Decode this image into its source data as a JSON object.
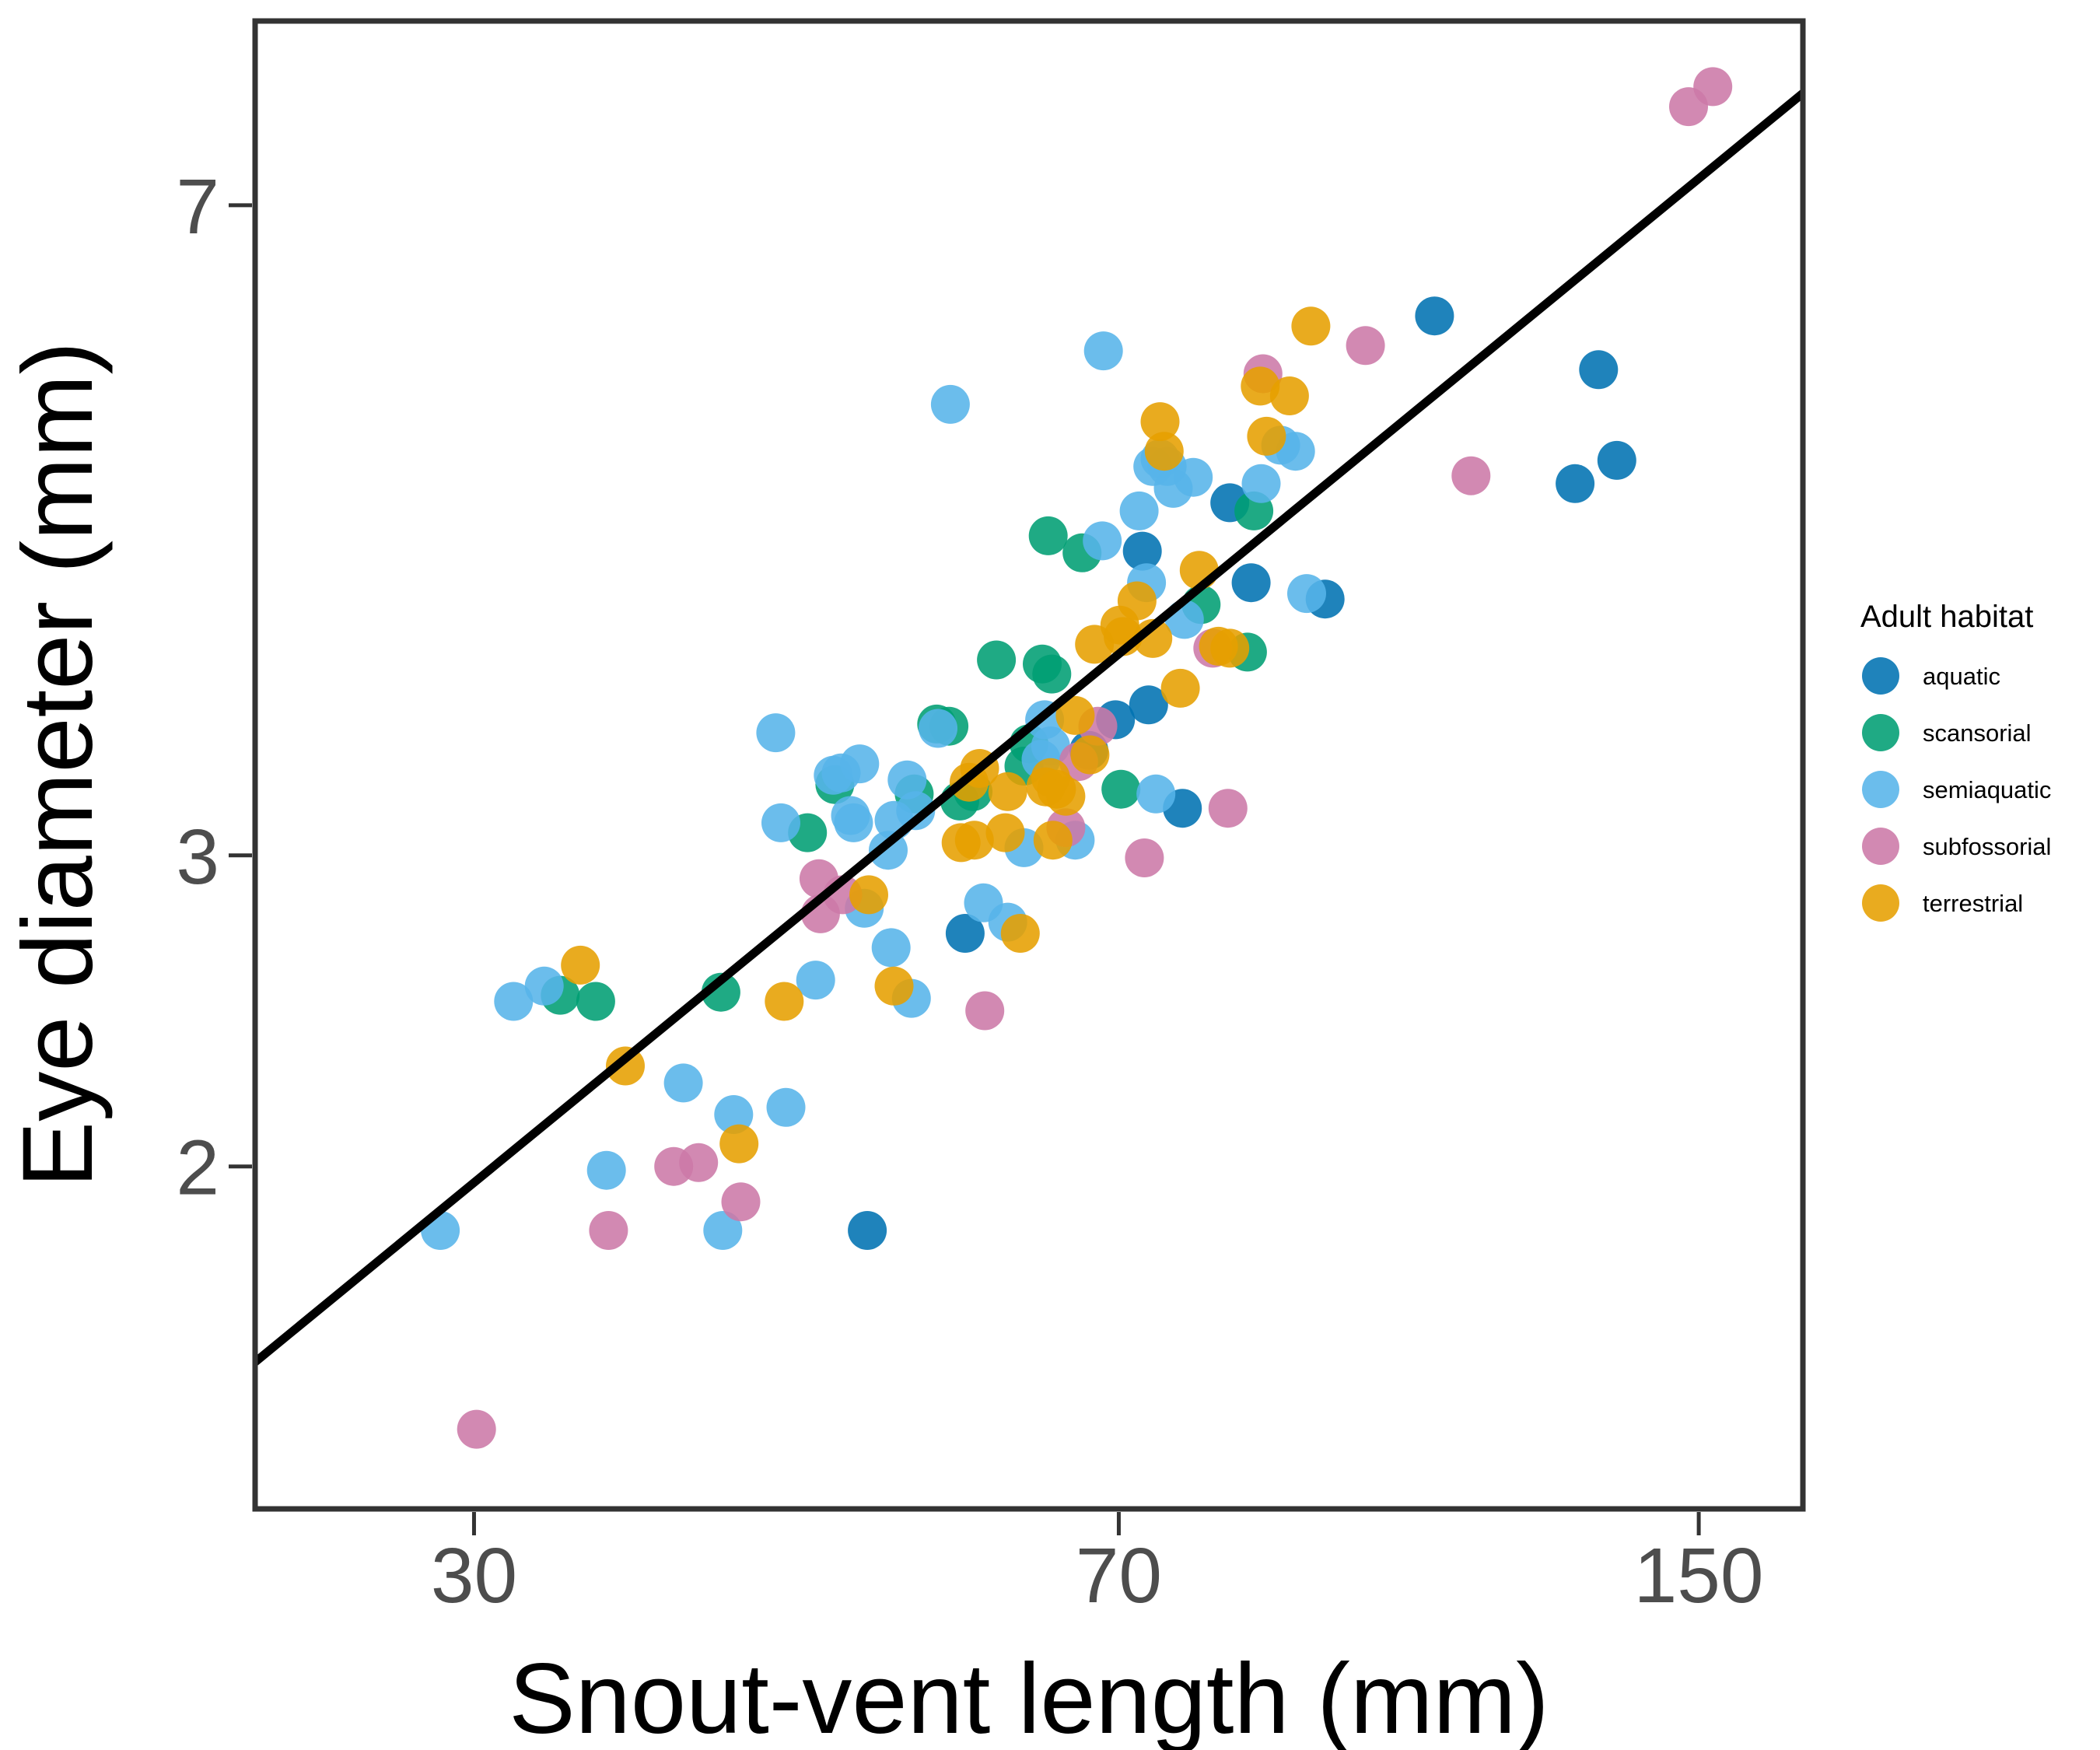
{
  "chart_data": {
    "type": "scatter",
    "title": "",
    "xlabel": "Snout-vent length (mm)",
    "ylabel": "Eye diameter (mm)",
    "x_scale": "log",
    "y_scale": "log",
    "xlim": [
      22.5,
      172
    ],
    "ylim": [
      1.28,
      8.9
    ],
    "x_ticks": [
      30,
      70,
      150
    ],
    "x_tick_labels": [
      "30",
      "70",
      "150"
    ],
    "y_ticks": [
      2,
      3,
      7
    ],
    "y_tick_labels": [
      "2",
      "3",
      "7"
    ],
    "grid": false,
    "legend": {
      "title": "Adult habitat",
      "position": "right",
      "entries": [
        "aquatic",
        "scansorial",
        "semiaquatic",
        "subfossorial",
        "terrestrial"
      ]
    },
    "colors": {
      "aquatic": "#0072B2",
      "scansorial": "#009E73",
      "semiaquatic": "#56B4E9",
      "subfossorial": "#CC79A7",
      "terrestrial": "#E69F00"
    },
    "fit_line": {
      "x": [
        22.5,
        172
      ],
      "y": [
        1.55,
        8.1
      ]
    },
    "series": [
      {
        "name": "aquatic",
        "points": [
          [
            50.3,
            1.84
          ],
          [
            57.2,
            2.71
          ],
          [
            69.7,
            3.58
          ],
          [
            72.2,
            4.46
          ],
          [
            72.8,
            3.65
          ],
          [
            76.1,
            3.19
          ],
          [
            67.3,
            3.44
          ],
          [
            83.3,
            4.28
          ],
          [
            81.0,
            4.75
          ],
          [
            91.8,
            4.19
          ],
          [
            106.0,
            6.06
          ],
          [
            127.5,
            4.87
          ],
          [
            131.5,
            5.65
          ],
          [
            134.7,
            5.02
          ]
        ]
      },
      {
        "name": "scansorial",
        "points": [
          [
            33.6,
            2.5
          ],
          [
            35.2,
            2.48
          ],
          [
            41.5,
            2.51
          ],
          [
            46.5,
            3.09
          ],
          [
            48.2,
            3.29
          ],
          [
            53.5,
            3.25
          ],
          [
            55.1,
            3.56
          ],
          [
            56.0,
            3.55
          ],
          [
            56.8,
            3.22
          ],
          [
            57.8,
            3.26
          ],
          [
            59.6,
            3.87
          ],
          [
            61.8,
            3.37
          ],
          [
            62.2,
            3.47
          ],
          [
            63.3,
            3.85
          ],
          [
            63.8,
            4.55
          ],
          [
            64.1,
            3.8
          ],
          [
            66.7,
            4.45
          ],
          [
            70.2,
            3.27
          ],
          [
            78.0,
            4.16
          ],
          [
            82.9,
            3.91
          ],
          [
            83.6,
            4.7
          ]
        ]
      },
      {
        "name": "semiaquatic",
        "points": [
          [
            28.7,
            1.84
          ],
          [
            31.6,
            2.48
          ],
          [
            32.9,
            2.53
          ],
          [
            35.7,
            1.99
          ],
          [
            39.5,
            2.23
          ],
          [
            41.6,
            1.84
          ],
          [
            42.2,
            2.14
          ],
          [
            44.6,
            3.52
          ],
          [
            44.9,
            3.13
          ],
          [
            45.2,
            2.16
          ],
          [
            47.0,
            2.55
          ],
          [
            48.1,
            3.33
          ],
          [
            48.6,
            3.34
          ],
          [
            49.2,
            3.16
          ],
          [
            49.4,
            3.13
          ],
          [
            49.8,
            3.38
          ],
          [
            50.1,
            2.8
          ],
          [
            51.7,
            3.02
          ],
          [
            51.9,
            2.66
          ],
          [
            52.1,
            3.14
          ],
          [
            53.0,
            3.31
          ],
          [
            53.3,
            2.49
          ],
          [
            53.6,
            3.18
          ],
          [
            55.2,
            3.54
          ],
          [
            58.6,
            2.82
          ],
          [
            60.5,
            2.75
          ],
          [
            61.8,
            3.03
          ],
          [
            63.2,
            3.4
          ],
          [
            63.5,
            3.58
          ],
          [
            64.0,
            3.46
          ],
          [
            66.1,
            3.06
          ],
          [
            68.5,
            4.52
          ],
          [
            68.6,
            5.79
          ],
          [
            56.1,
            5.4
          ],
          [
            71.9,
            4.7
          ],
          [
            72.6,
            4.28
          ],
          [
            73.2,
            4.98
          ],
          [
            73.9,
            5.03
          ],
          [
            74.6,
            4.98
          ],
          [
            75.2,
            4.84
          ],
          [
            76.3,
            4.08
          ],
          [
            77.2,
            4.91
          ],
          [
            73.5,
            3.25
          ],
          [
            84.4,
            4.87
          ],
          [
            86.6,
            5.12
          ],
          [
            88.3,
            5.08
          ],
          [
            89.6,
            4.22
          ]
        ]
      },
      {
        "name": "subfossorial",
        "points": [
          [
            30.1,
            1.42
          ],
          [
            35.8,
            1.84
          ],
          [
            39.0,
            2.0
          ],
          [
            40.3,
            2.01
          ],
          [
            42.6,
            1.91
          ],
          [
            47.2,
            2.91
          ],
          [
            47.3,
            2.78
          ],
          [
            48.7,
            2.85
          ],
          [
            58.7,
            2.45
          ],
          [
            65.3,
            3.11
          ],
          [
            66.4,
            3.39
          ],
          [
            68.1,
            3.55
          ],
          [
            72.4,
            2.99
          ],
          [
            79.2,
            3.93
          ],
          [
            80.8,
            3.19
          ],
          [
            84.6,
            5.62
          ],
          [
            96.8,
            5.83
          ],
          [
            111.2,
            4.92
          ],
          [
            148.0,
            7.96
          ],
          [
            152.8,
            8.17
          ]
        ]
      },
      {
        "name": "terrestrial",
        "points": [
          [
            34.5,
            2.6
          ],
          [
            36.6,
            2.28
          ],
          [
            42.5,
            2.06
          ],
          [
            45.1,
            2.48
          ],
          [
            50.4,
            2.85
          ],
          [
            52.1,
            2.53
          ],
          [
            56.9,
            3.05
          ],
          [
            57.9,
            3.06
          ],
          [
            57.5,
            3.3
          ],
          [
            58.3,
            3.36
          ],
          [
            60.3,
            3.09
          ],
          [
            60.5,
            3.26
          ],
          [
            61.5,
            2.71
          ],
          [
            63.6,
            3.28
          ],
          [
            64.0,
            3.32
          ],
          [
            64.2,
            3.06
          ],
          [
            64.5,
            3.27
          ],
          [
            65.3,
            3.24
          ],
          [
            66.1,
            3.6
          ],
          [
            67.8,
            3.95
          ],
          [
            67.4,
            3.42
          ],
          [
            70.1,
            4.05
          ],
          [
            70.4,
            3.99
          ],
          [
            71.7,
            4.18
          ],
          [
            73.2,
            3.98
          ],
          [
            73.9,
            5.28
          ],
          [
            74.3,
            5.08
          ],
          [
            75.9,
            3.73
          ],
          [
            77.8,
            4.35
          ],
          [
            79.8,
            3.94
          ],
          [
            81.0,
            3.93
          ],
          [
            84.3,
            5.53
          ],
          [
            85.0,
            5.18
          ],
          [
            87.6,
            5.46
          ],
          [
            90.1,
            5.98
          ]
        ]
      }
    ]
  }
}
